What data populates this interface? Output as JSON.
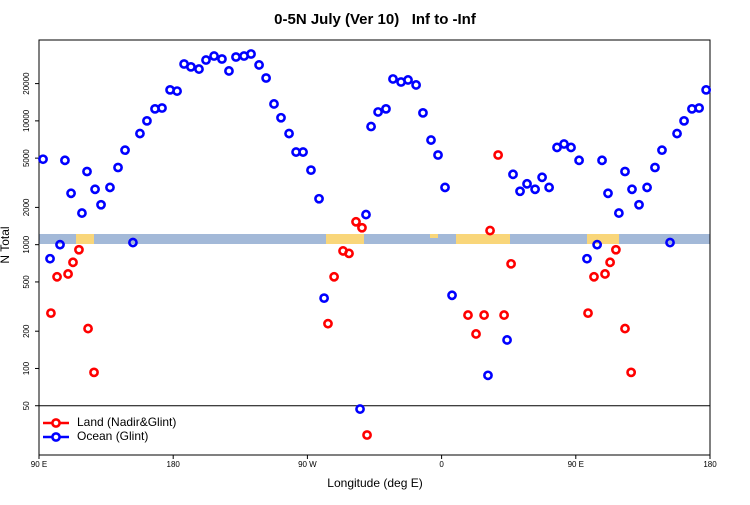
{
  "chart_data": {
    "type": "scatter",
    "title": "0-5N July (Ver 10)   Inf to -Inf",
    "x_label": "Longitude (deg E)",
    "y_label": "N Total",
    "log_y": true,
    "legend": "bottom-left",
    "xlim": [
      90,
      540
    ],
    "xticks": [
      {
        "value": 90,
        "label": "90 E"
      },
      180,
      {
        "value": 270,
        "label": "90 W"
      },
      {
        "value": 360,
        "label": "0"
      },
      {
        "value": 450,
        "label": "90 E"
      },
      {
        "value": 540,
        "label": "180"
      }
    ],
    "ylim": [
      20,
      45000
    ],
    "yticks": [
      50,
      100,
      200,
      500,
      1000,
      2000,
      5000,
      10000,
      20000
    ],
    "hline": 50,
    "series": [
      {
        "name": "Land (Nadir&Glint)",
        "color": "#ff0000",
        "x": [
          98.0,
          102.1,
          109.5,
          112.8,
          116.8,
          122.9,
          126.9,
          283.8,
          287.9,
          293.9,
          297.9,
          302.6,
          306.6,
          310.0,
          377.7,
          383.1,
          388.5,
          392.5,
          397.9,
          401.9,
          406.6,
          458.2,
          462.2,
          469.6,
          473.0,
          476.9,
          483.0,
          487.1
        ],
        "values": [
          280,
          550,
          580,
          720,
          910,
          210,
          93,
          230,
          550,
          890,
          850,
          1530,
          1370,
          29,
          270,
          190,
          270,
          1300,
          5300,
          270,
          700,
          280,
          550,
          580,
          720,
          910,
          210,
          93
        ]
      },
      {
        "name": "Ocean (Glint)",
        "color": "#0000ff",
        "x": [
          92.7,
          97.4,
          104.1,
          107.4,
          111.5,
          118.8,
          122.2,
          127.6,
          131.6,
          137.6,
          143.0,
          147.7,
          153.0,
          157.7,
          162.4,
          167.8,
          172.5,
          177.9,
          182.6,
          187.3,
          191.9,
          197.3,
          202.0,
          207.4,
          212.7,
          217.4,
          222.1,
          227.5,
          232.2,
          237.6,
          242.3,
          247.6,
          252.3,
          257.7,
          262.4,
          267.1,
          272.4,
          277.8,
          281.2,
          305.3,
          309.3,
          312.7,
          317.4,
          322.7,
          327.4,
          332.8,
          337.5,
          342.9,
          347.5,
          352.9,
          357.6,
          362.3,
          367.0,
          391.1,
          403.9,
          407.9,
          412.6,
          417.3,
          422.7,
          427.4,
          432.1,
          437.4,
          442.1,
          446.8,
          452.2,
          457.5,
          464.3,
          467.6,
          471.6,
          478.9,
          483.0,
          487.7,
          492.4,
          497.8,
          503.1,
          507.8,
          513.2,
          517.9,
          522.6,
          527.9,
          532.7,
          537.4
        ],
        "values": [
          4900,
          770,
          1000,
          4800,
          2600,
          1800,
          3900,
          2800,
          2100,
          2900,
          4200,
          5800,
          1040,
          7900,
          10000,
          12500,
          12700,
          17800,
          17400,
          28800,
          27300,
          26200,
          31000,
          33400,
          31600,
          25300,
          32800,
          33400,
          34700,
          28300,
          22200,
          13700,
          10600,
          7900,
          5600,
          5600,
          4000,
          2350,
          370,
          47,
          1750,
          9000,
          11800,
          12500,
          21800,
          20600,
          21400,
          19500,
          11600,
          7000,
          5300,
          2900,
          390,
          88,
          170,
          3700,
          2700,
          3100,
          2800,
          3500,
          2900,
          6100,
          6500,
          6100,
          4800,
          770,
          1000,
          4800,
          2600,
          1800,
          3900,
          2800,
          2100,
          2900,
          4200,
          5800,
          1040,
          7900,
          10000,
          12500,
          12700,
          17800
        ]
      }
    ]
  }
}
